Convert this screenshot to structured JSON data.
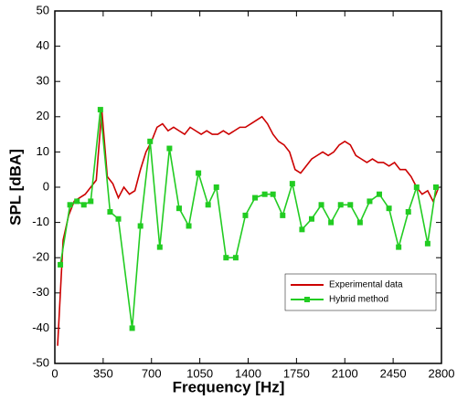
{
  "chart_data": {
    "type": "line",
    "x_label": "Frequency [Hz]",
    "y_label": "SPL  [dBA]",
    "xlim": [
      0,
      2800
    ],
    "ylim": [
      -50,
      50
    ],
    "xticks": [
      0,
      350,
      700,
      1050,
      1400,
      1750,
      2100,
      2450,
      2800
    ],
    "yticks": [
      -50,
      -40,
      -30,
      -20,
      -10,
      0,
      10,
      20,
      30,
      40,
      50
    ],
    "legend": "lower right",
    "series": [
      {
        "name": "Experimental data",
        "color": "#cc0000",
        "marker": false,
        "x": [
          20,
          60,
          100,
          140,
          180,
          220,
          260,
          300,
          340,
          380,
          420,
          460,
          500,
          540,
          580,
          620,
          660,
          700,
          740,
          780,
          820,
          860,
          900,
          940,
          980,
          1020,
          1060,
          1100,
          1140,
          1180,
          1220,
          1260,
          1300,
          1340,
          1380,
          1420,
          1460,
          1500,
          1540,
          1580,
          1620,
          1660,
          1700,
          1740,
          1780,
          1820,
          1860,
          1900,
          1940,
          1980,
          2020,
          2060,
          2100,
          2140,
          2180,
          2220,
          2260,
          2300,
          2340,
          2380,
          2420,
          2460,
          2500,
          2540,
          2580,
          2620,
          2660,
          2700,
          2740,
          2780
        ],
        "values": [
          -45,
          -15,
          -8,
          -4,
          -3,
          -2,
          0,
          2,
          22,
          3,
          1,
          -3,
          0,
          -2,
          -1,
          5,
          10,
          13,
          17,
          18,
          16,
          17,
          16,
          15,
          17,
          16,
          15,
          16,
          15,
          15,
          16,
          15,
          16,
          17,
          17,
          18,
          19,
          20,
          18,
          15,
          13,
          12,
          10,
          5,
          4,
          6,
          8,
          9,
          10,
          9,
          10,
          12,
          13,
          12,
          9,
          8,
          7,
          8,
          7,
          7,
          6,
          7,
          5,
          5,
          3,
          0,
          -2,
          -1,
          -4,
          0
        ]
      },
      {
        "name": "Hybrid method",
        "color": "#22cc22",
        "marker": true,
        "x": [
          40,
          110,
          160,
          210,
          260,
          330,
          400,
          460,
          560,
          620,
          690,
          760,
          830,
          900,
          970,
          1040,
          1110,
          1170,
          1240,
          1310,
          1380,
          1450,
          1520,
          1580,
          1650,
          1720,
          1790,
          1860,
          1930,
          2000,
          2070,
          2140,
          2210,
          2280,
          2350,
          2420,
          2490,
          2560,
          2620,
          2700,
          2760
        ],
        "values": [
          -22,
          -5,
          -4,
          -5,
          -4,
          22,
          -7,
          -9,
          -40,
          -11,
          13,
          -17,
          11,
          -6,
          -11,
          4,
          -5,
          0,
          -20,
          -20,
          -8,
          -3,
          -2,
          -2,
          -8,
          1,
          -12,
          -9,
          -5,
          -10,
          -5,
          -5,
          -10,
          -4,
          -2,
          -6,
          -17,
          -7,
          0,
          -16,
          0
        ]
      }
    ]
  }
}
